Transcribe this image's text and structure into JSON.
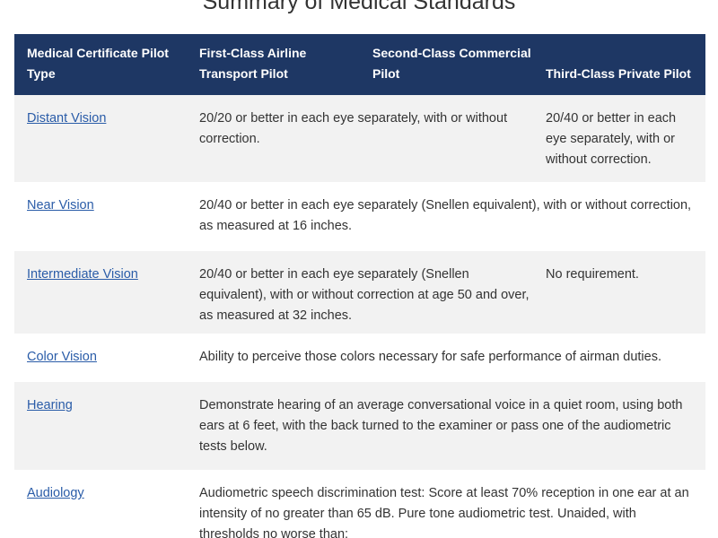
{
  "title": "Summary of Medical Standards",
  "table": {
    "headers": [
      "Medical Certificate Pilot Type",
      "First-Class Airline Transport Pilot",
      "Second-Class Commercial Pilot",
      "Third-Class Private Pilot"
    ],
    "rows": [
      [
        "Distant Vision",
        "20/20 or better in each eye separately, with or without correction.",
        "20/40 or better in each eye separately, with or without correction."
      ],
      [
        "Near Vision",
        "20/40 or better in each eye separately (Snellen equivalent), with or without correction, as measured at 16 inches."
      ],
      [
        "Intermediate Vision",
        "20/40 or better in each eye separately (Snellen equivalent), with or without correction at age 50 and over, as measured at 32 inches.",
        "No requirement."
      ],
      [
        "Color Vision",
        "Ability to perceive those colors necessary for safe performance of airman duties."
      ],
      [
        "Hearing",
        "Demonstrate hearing of an average conversational voice in a quiet room, using both ears at 6 feet, with the back turned to the examiner or pass one of the audiometric tests below."
      ],
      [
        "Audiology",
        "Audiometric speech discrimination test: Score at least 70% reception in one ear at an intensity of no greater than 65 dB. Pure tone audiometric test. Unaided, with thresholds no worse than:"
      ]
    ]
  }
}
